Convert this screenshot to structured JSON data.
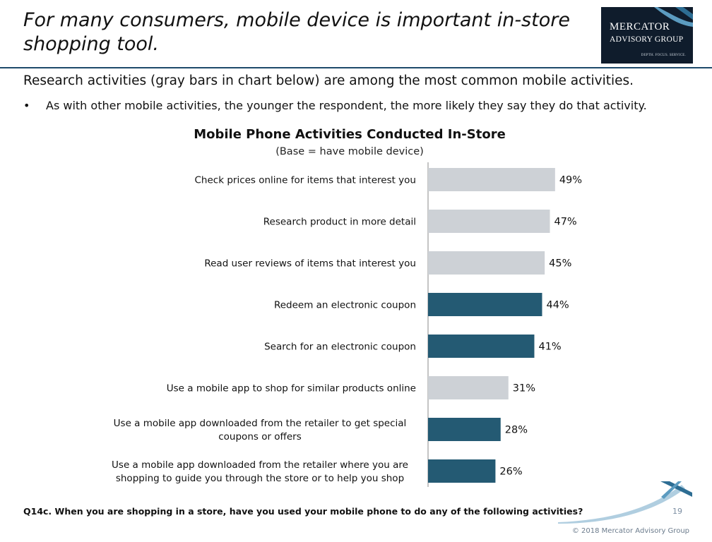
{
  "slide": {
    "title": "For many consumers, mobile device is important in-store shopping tool.",
    "subtitle": "Research activities (gray bars in chart below) are among the most common mobile activities.",
    "bullet": "As with other mobile activities, the younger the respondent, the more likely they say they do that activity.",
    "question": "Q14c. When you are shopping in a store, have you used your mobile phone to do any of the following activities?",
    "page_number": "19",
    "copyright": "© 2018 Mercator Advisory Group"
  },
  "logo": {
    "line1": "MERCATOR",
    "line2": "ADVISORY GROUP",
    "tagline": "DEPTH. FOCUS. SERVICE."
  },
  "colors": {
    "research": "#cdd1d6",
    "other": "#245a73",
    "axis": "#888888",
    "logo_bg": "#0f1c2c"
  },
  "chart_data": {
    "type": "bar",
    "orientation": "horizontal",
    "title": "Mobile Phone Activities Conducted In-Store",
    "subtitle": "(Base = have mobile device)",
    "categories": [
      "Check prices online for items that interest you",
      "Research product in more detail",
      "Read user reviews of items that interest you",
      "Redeem an electronic coupon",
      "Search for an electronic coupon",
      "Use a mobile app to shop for similar products online",
      "Use a mobile app downloaded from the retailer to get special coupons or offers",
      "Use a mobile app downloaded from the retailer where you are shopping to guide you through the store or to help you shop"
    ],
    "category_lines": [
      [
        "Check prices online for items that interest you"
      ],
      [
        "Research product in more detail"
      ],
      [
        "Read user reviews of items that interest you"
      ],
      [
        "Redeem an electronic coupon"
      ],
      [
        "Search for an electronic coupon"
      ],
      [
        "Use a mobile app to shop for similar products online"
      ],
      [
        "Use a mobile app downloaded from the retailer to get special",
        "coupons or offers"
      ],
      [
        "Use a mobile app downloaded from the retailer where you are",
        "shopping to guide you through the store or to help you shop"
      ]
    ],
    "values": [
      49,
      47,
      45,
      44,
      41,
      31,
      28,
      26
    ],
    "value_labels": [
      "49%",
      "47%",
      "45%",
      "44%",
      "41%",
      "31%",
      "28%",
      "26%"
    ],
    "bar_group": [
      "research",
      "research",
      "research",
      "other",
      "other",
      "research",
      "other",
      "other"
    ],
    "xlim": [
      0,
      100
    ],
    "unit": "%"
  }
}
